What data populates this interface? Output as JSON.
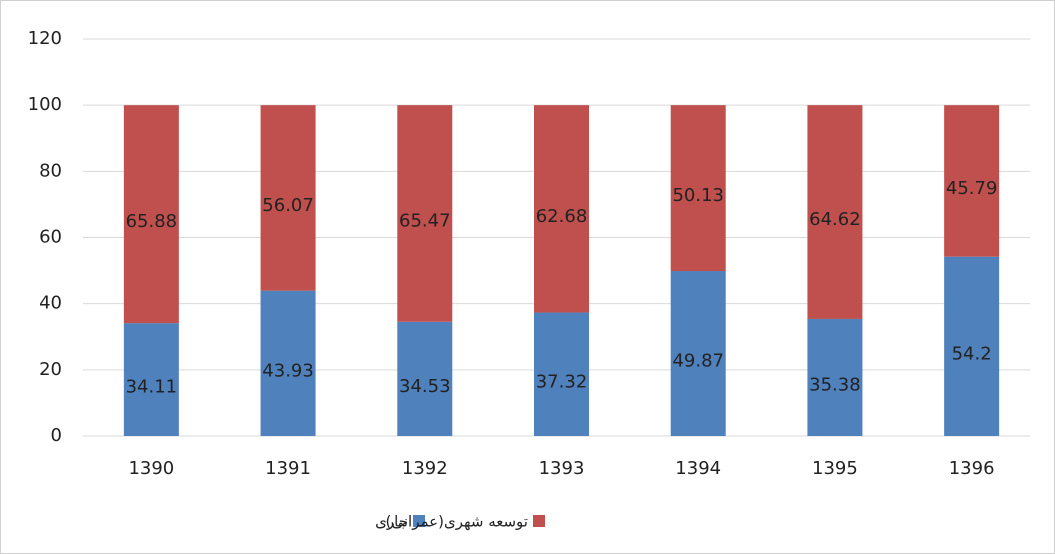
{
  "chart_data": {
    "type": "stacked_bar",
    "categories": [
      "1390",
      "1391",
      "1392",
      "1393",
      "1394",
      "1395",
      "1396"
    ],
    "series": [
      {
        "name": "جاری",
        "color": "#4f81bd",
        "values": [
          34.11,
          43.93,
          34.53,
          37.32,
          49.87,
          35.38,
          54.2
        ]
      },
      {
        "name": "توسعه شهری(عمرانی)",
        "color": "#c0504d",
        "values": [
          65.88,
          56.07,
          65.47,
          62.68,
          50.13,
          64.62,
          45.79
        ]
      }
    ],
    "ylim": [
      0,
      120
    ],
    "yticks": [
      0,
      20,
      40,
      60,
      80,
      100,
      120
    ],
    "grid": true
  }
}
